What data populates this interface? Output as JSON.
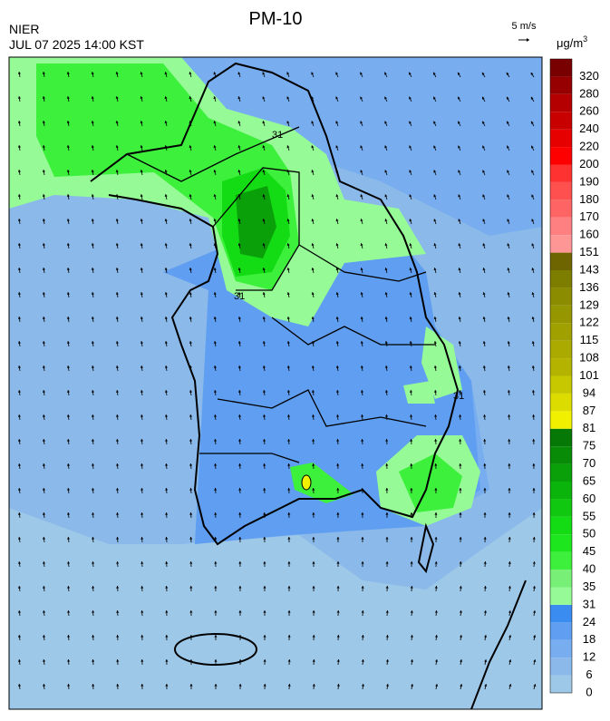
{
  "header": {
    "agency": "NIER",
    "datetime": "JUL 07 2025 14:00 KST",
    "title": "PM-10",
    "wind_scale": "5 m/s",
    "unit": "μg/m",
    "unit_sup": "3"
  },
  "map": {
    "contour_labels": [
      "31",
      "31",
      "31"
    ]
  },
  "colorbar": {
    "levels": [
      0,
      6,
      12,
      18,
      24,
      31,
      35,
      40,
      45,
      50,
      55,
      60,
      65,
      70,
      75,
      81,
      87,
      94,
      101,
      108,
      115,
      122,
      129,
      136,
      143,
      151,
      160,
      170,
      180,
      190,
      200,
      220,
      240,
      260,
      280,
      320
    ],
    "colors": [
      "#9dc8e8",
      "#8ab9ea",
      "#78aef0",
      "#5f9ef0",
      "#3a8cf0",
      "#96fa96",
      "#78f078",
      "#3cf03c",
      "#1ee61e",
      "#14dc14",
      "#0fc80f",
      "#0ab40a",
      "#0aa00a",
      "#088c08",
      "#057805",
      "#f0f000",
      "#dcdc00",
      "#c8c800",
      "#b4b400",
      "#aaaa00",
      "#a0a000",
      "#969600",
      "#8c8c00",
      "#7d7d00",
      "#6e6400",
      "#ff9696",
      "#ff8080",
      "#ff6464",
      "#ff5050",
      "#ff3232",
      "#ff0000",
      "#e60000",
      "#c80000",
      "#b40000",
      "#960000",
      "#780000"
    ]
  }
}
